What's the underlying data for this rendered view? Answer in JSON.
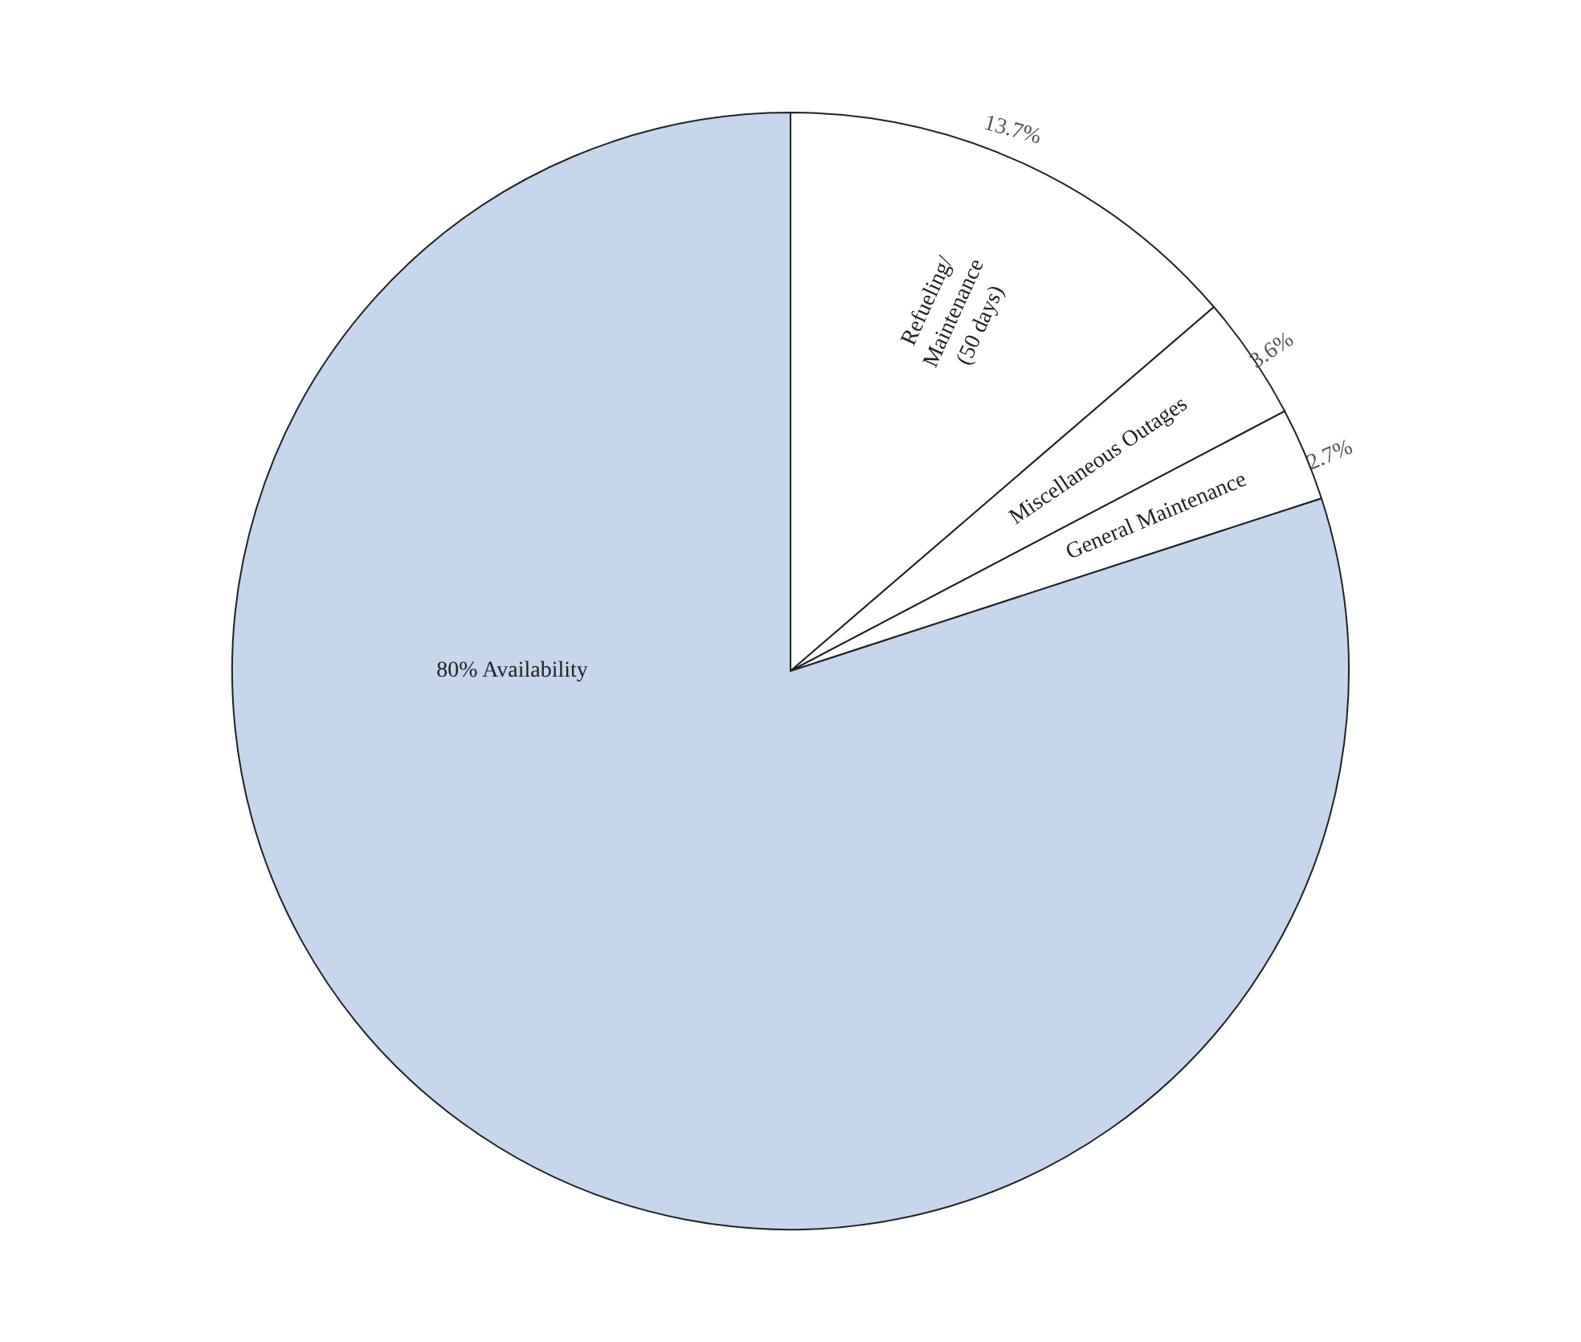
{
  "chart_data": {
    "type": "pie",
    "categories": [
      "Refueling/\nMaintenance\n(50 days)",
      "Miscellaneous Outages",
      "General Maintenance",
      "80% Availability"
    ],
    "values": [
      13.7,
      3.6,
      2.7,
      80
    ],
    "colors": [
      "#ffffff",
      "#ffffff",
      "#ffffff",
      "#c6d6ec"
    ],
    "value_labels": [
      "13.7%",
      "3.6%",
      "2.7%",
      null
    ],
    "legend": false
  }
}
